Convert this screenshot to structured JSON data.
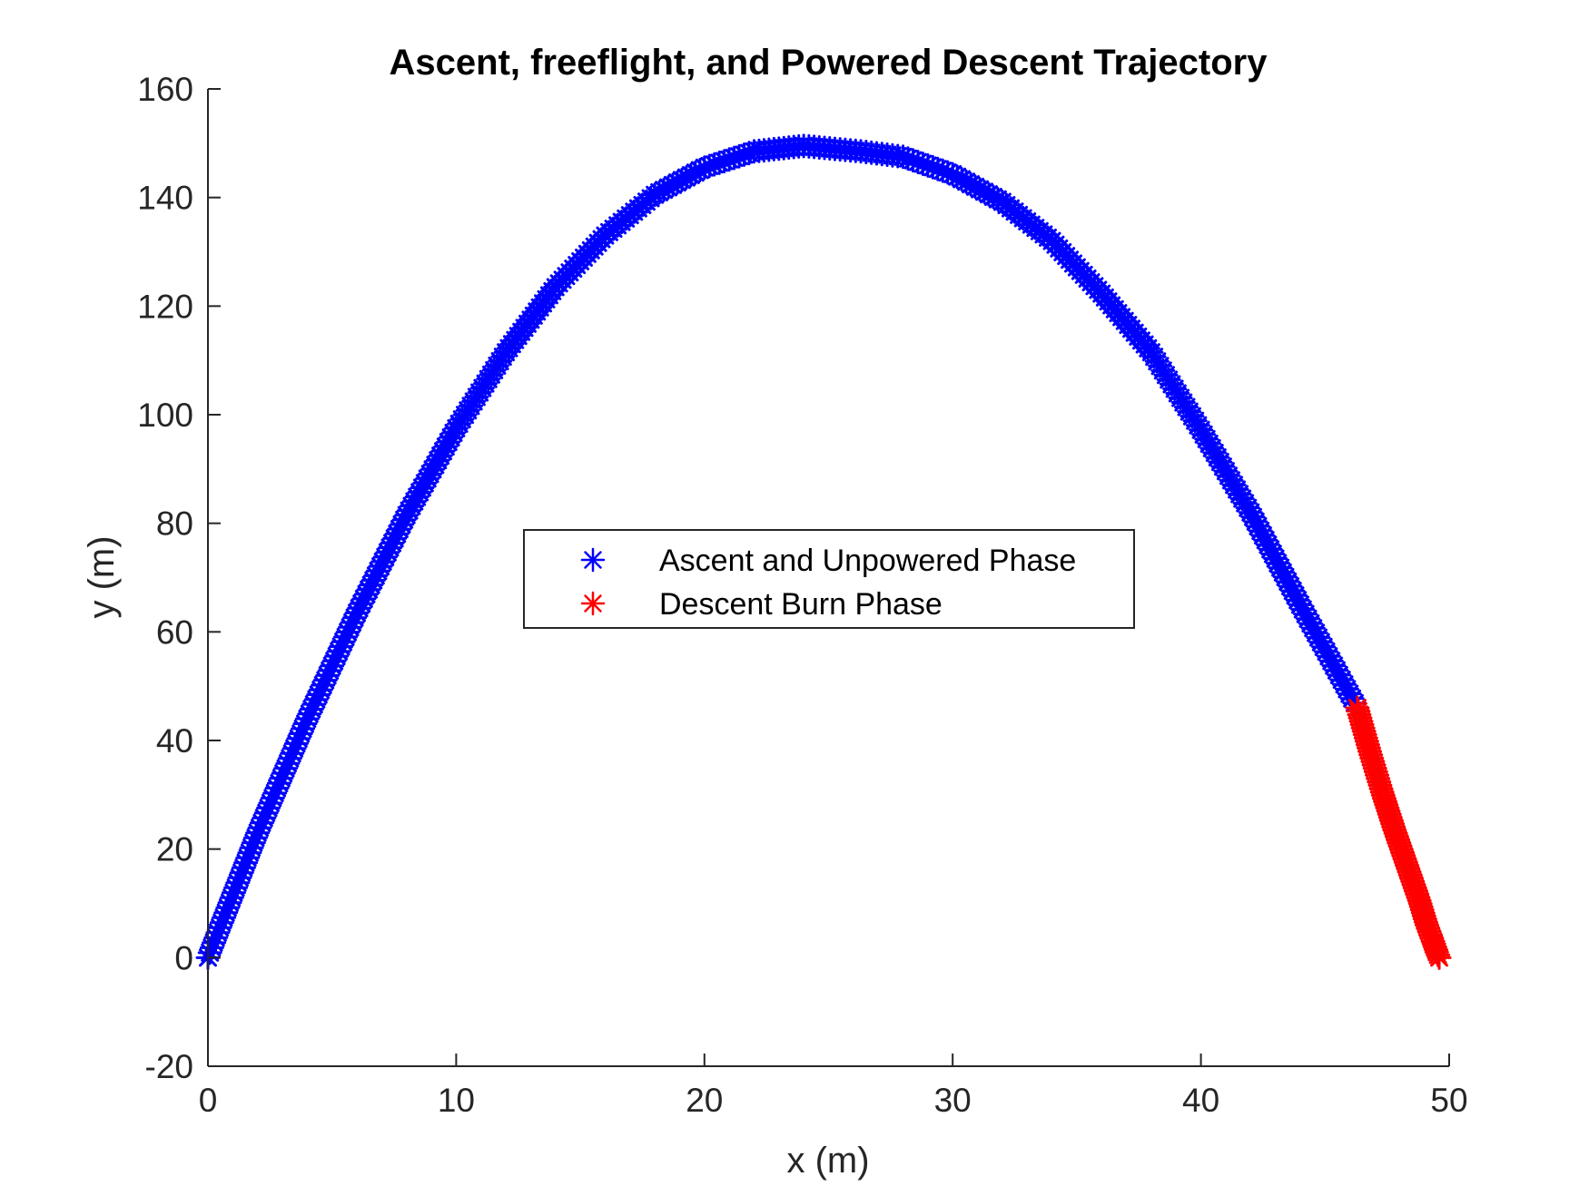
{
  "chart_data": {
    "type": "scatter",
    "title": "Ascent, freeflight, and Powered Descent Trajectory",
    "xlabel": "x (m)",
    "ylabel": "y (m)",
    "xlim": [
      0,
      50
    ],
    "ylim": [
      -20,
      160
    ],
    "xticks": [
      0,
      10,
      20,
      30,
      40,
      50
    ],
    "yticks": [
      -20,
      0,
      20,
      40,
      60,
      80,
      100,
      120,
      140,
      160
    ],
    "xtick_labels": [
      "0",
      "10",
      "20",
      "30",
      "40",
      "50"
    ],
    "ytick_labels": [
      "-20",
      "0",
      "20",
      "40",
      "60",
      "80",
      "100",
      "120",
      "140",
      "160"
    ],
    "grid": false,
    "legend_position": "center",
    "marker": "asterisk",
    "series": [
      {
        "name": "Ascent and Unpowered Phase",
        "color": "#0000ff",
        "x": [
          0,
          2,
          4,
          6,
          8,
          10,
          12,
          14,
          16,
          18,
          20,
          22,
          24,
          26.3,
          28,
          30,
          32,
          34,
          36,
          38,
          40,
          42,
          44,
          46.3
        ],
        "y": [
          0,
          23,
          44,
          63.5,
          81.5,
          97.5,
          111.5,
          123.5,
          133,
          140.5,
          145.5,
          148.5,
          149.5,
          148.5,
          147.5,
          144.3,
          139.2,
          132,
          122.3,
          111.5,
          97.2,
          82,
          65,
          46
        ]
      },
      {
        "name": "Descent Burn Phase",
        "color": "#ff0000",
        "x": [
          46.3,
          46.8,
          47.3,
          47.8,
          48.3,
          48.8,
          49.1,
          49.35,
          49.5,
          49.6
        ],
        "y": [
          46,
          38,
          30.5,
          23.5,
          17,
          10.5,
          6,
          3,
          1,
          0
        ]
      }
    ]
  }
}
